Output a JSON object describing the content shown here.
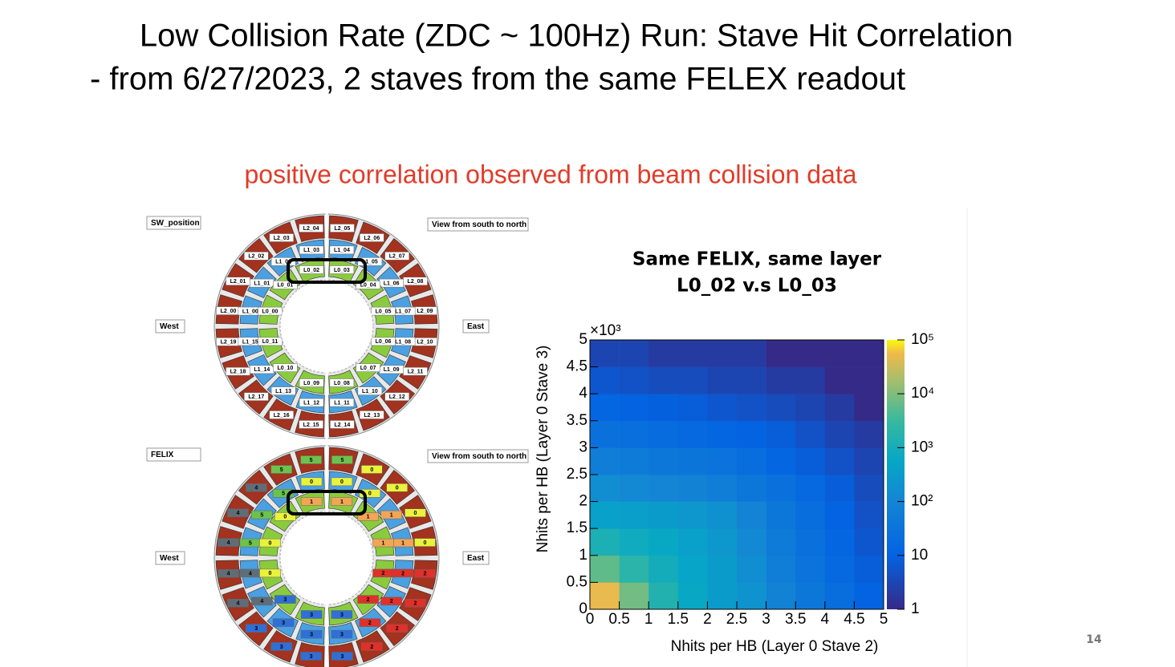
{
  "title_line1": "Low Collision Rate  (ZDC ~ 100Hz) Run: Stave Hit Correlation",
  "title_line2": "-  from 6/27/2023,  2 staves from the same FELEX readout",
  "subtitle": "positive correlation observed from beam collision data",
  "page_number": "14",
  "diagram_top": {
    "corner_label": "SW_position",
    "view_label": "View from south to north",
    "west": "West",
    "east": "East",
    "L2": [
      "L2_00",
      "L2_01",
      "L2_02",
      "L2_03",
      "L2_04",
      "L2_05",
      "L2_06",
      "L2_07",
      "L2_08",
      "L2_09",
      "L2_10",
      "L2_11",
      "L2_12",
      "L2_13",
      "L2_14",
      "L2_15",
      "L2_16",
      "L2_17",
      "L2_18",
      "L2_19"
    ],
    "L1": [
      "L1_00",
      "L1_01",
      "L1_02",
      "L1_03",
      "L1_04",
      "L1_05",
      "L1_06",
      "L1_07",
      "L1_08",
      "L1_09",
      "L1_10",
      "L1_11",
      "L1_12",
      "L1_13",
      "L1_14",
      "L1_15"
    ],
    "L0": [
      "L0_00",
      "L0_01",
      "L0_02",
      "L0_03",
      "L0_04",
      "L0_05",
      "L0_06",
      "L0_07",
      "L0_08",
      "L0_09",
      "L0_10",
      "L0_11"
    ]
  },
  "diagram_bottom": {
    "corner_label": "FELIX",
    "view_label": "View from south to north",
    "west": "West",
    "east": "East",
    "felix_colors": [
      "#e9f23c",
      "#f2a555",
      "#e0302a",
      "#2f6fd6",
      "#5e6d78",
      "#6cc24a"
    ],
    "L2": [
      4,
      4,
      4,
      5,
      5,
      5,
      0,
      0,
      0,
      0,
      2,
      2,
      2,
      2,
      3,
      3,
      3,
      3,
      4,
      4
    ],
    "L1": [
      5,
      5,
      5,
      0,
      0,
      0,
      1,
      1,
      2,
      2,
      2,
      3,
      3,
      3,
      4,
      4
    ],
    "L0": [
      0,
      0,
      1,
      1,
      1,
      1,
      2,
      2,
      3,
      3,
      3,
      0
    ]
  },
  "chart_data": {
    "type": "hist2d",
    "title": "Same FELIX, same layer",
    "subtitle": "L0_02 v.s L0_03",
    "x_label": "Nhits per HB (Layer 0 Stave 2)",
    "y_label": "Nhits per HB (Layer 0 Stave 3)",
    "axis_multiplier": "×10³",
    "xbins": [
      0,
      0.5,
      1,
      1.5,
      2,
      2.5,
      3,
      3.5,
      4,
      4.5,
      5
    ],
    "ybins": [
      0,
      0.5,
      1,
      1.5,
      2,
      2.5,
      3,
      3.5,
      4,
      4.5,
      5
    ],
    "values": [
      [
        50000,
        8000,
        1500,
        600,
        300,
        200,
        80,
        40,
        20,
        10
      ],
      [
        6000,
        2000,
        900,
        500,
        300,
        150,
        60,
        30,
        15,
        8
      ],
      [
        1200,
        800,
        600,
        400,
        250,
        120,
        50,
        25,
        12,
        6
      ],
      [
        400,
        350,
        300,
        250,
        180,
        90,
        40,
        20,
        10,
        5
      ],
      [
        150,
        120,
        100,
        80,
        60,
        40,
        25,
        15,
        8,
        4
      ],
      [
        60,
        50,
        40,
        35,
        30,
        20,
        12,
        8,
        5,
        3
      ],
      [
        25,
        22,
        18,
        15,
        12,
        10,
        8,
        5,
        3,
        2
      ],
      [
        12,
        10,
        9,
        8,
        6,
        5,
        4,
        3,
        2,
        1
      ],
      [
        6,
        5,
        4,
        4,
        3,
        3,
        2,
        2,
        1,
        1
      ],
      [
        3,
        3,
        2,
        2,
        2,
        2,
        1,
        1,
        1,
        1
      ]
    ],
    "xlim": [
      0,
      5
    ],
    "ylim": [
      0,
      5
    ],
    "xticks": [
      0,
      0.5,
      1,
      1.5,
      2,
      2.5,
      3,
      3.5,
      4,
      4.5,
      5
    ],
    "yticks": [
      0,
      0.5,
      1,
      1.5,
      2,
      2.5,
      3,
      3.5,
      4,
      4.5,
      5
    ],
    "clim": [
      1,
      100000
    ],
    "log_color": true,
    "cticks": [
      1,
      10,
      {
        "value": 100,
        "label": "10²"
      },
      {
        "value": 1000,
        "label": "10³"
      },
      {
        "value": 10000,
        "label": "10⁴"
      },
      {
        "value": 100000,
        "label": "10⁵"
      }
    ]
  }
}
